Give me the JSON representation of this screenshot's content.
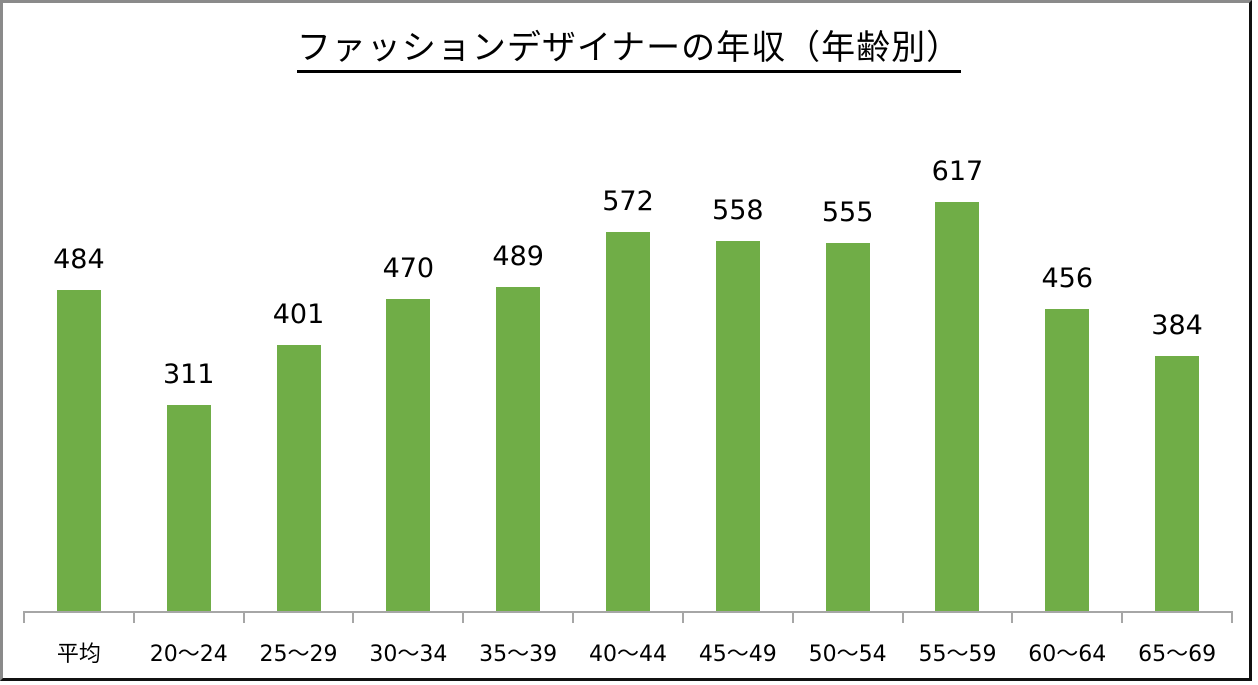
{
  "title": "ファッションデザイナーの年収（年齢別）",
  "colors": {
    "bar": "#70ad47",
    "axis": "#a6a6a6",
    "text": "#000000"
  },
  "chart_data": {
    "type": "bar",
    "title": "ファッションデザイナーの年収（年齢別）",
    "xlabel": "",
    "ylabel": "",
    "categories": [
      "平均",
      "20〜24",
      "25〜29",
      "30〜34",
      "35〜39",
      "40〜44",
      "45〜49",
      "50〜54",
      "55〜59",
      "60〜64",
      "65〜69"
    ],
    "values": [
      484,
      311,
      401,
      470,
      489,
      572,
      558,
      555,
      617,
      456,
      384
    ],
    "ylim": [
      0,
      700
    ],
    "grid": false,
    "legend": null,
    "data_labels": true
  }
}
